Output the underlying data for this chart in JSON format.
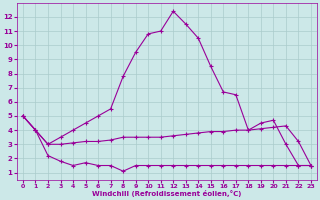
{
  "background_color": "#cce8e8",
  "grid_color": "#aacccc",
  "line_color": "#990099",
  "xlabel": "Windchill (Refroidissement éolien,°C)",
  "xlim": [
    -0.5,
    23.5
  ],
  "ylim": [
    0.5,
    13
  ],
  "xticks": [
    0,
    1,
    2,
    3,
    4,
    5,
    6,
    7,
    8,
    9,
    10,
    11,
    12,
    13,
    14,
    15,
    16,
    17,
    18,
    19,
    20,
    21,
    22,
    23
  ],
  "yticks": [
    1,
    2,
    3,
    4,
    5,
    6,
    7,
    8,
    9,
    10,
    11,
    12
  ],
  "figsize": [
    3.2,
    2.0
  ],
  "dpi": 100,
  "series": [
    {
      "x": [
        0,
        1,
        2,
        3,
        4,
        5,
        6,
        7,
        8,
        9,
        10,
        11,
        12,
        13,
        14,
        15,
        16,
        17,
        18,
        19,
        20,
        21,
        22,
        23
      ],
      "y": [
        5.0,
        4.0,
        3.0,
        3.5,
        4.0,
        4.5,
        5.0,
        5.5,
        7.8,
        9.5,
        10.8,
        11.0,
        12.4,
        11.5,
        10.5,
        8.5,
        6.7,
        6.5,
        4.0,
        4.5,
        4.7,
        3.0,
        1.5,
        1.5
      ]
    },
    {
      "x": [
        0,
        1,
        2,
        3,
        4,
        5,
        6,
        7,
        8,
        9,
        10,
        11,
        12,
        13,
        14,
        15,
        16,
        17,
        18,
        19,
        20,
        21,
        22,
        23
      ],
      "y": [
        5.0,
        4.0,
        3.0,
        3.0,
        3.1,
        3.2,
        3.2,
        3.3,
        3.5,
        3.5,
        3.5,
        3.5,
        3.6,
        3.7,
        3.8,
        3.9,
        3.9,
        4.0,
        4.0,
        4.1,
        4.2,
        4.3,
        3.2,
        1.5
      ]
    },
    {
      "x": [
        0,
        1,
        2,
        3,
        4,
        5,
        6,
        7,
        8,
        9,
        10,
        11,
        12,
        13,
        14,
        15,
        16,
        17,
        18,
        19,
        20,
        21,
        22,
        23
      ],
      "y": [
        5.0,
        4.0,
        2.2,
        1.8,
        1.5,
        1.7,
        1.5,
        1.5,
        1.1,
        1.5,
        1.5,
        1.5,
        1.5,
        1.5,
        1.5,
        1.5,
        1.5,
        1.5,
        1.5,
        1.5,
        1.5,
        1.5,
        1.5,
        1.5
      ]
    }
  ]
}
